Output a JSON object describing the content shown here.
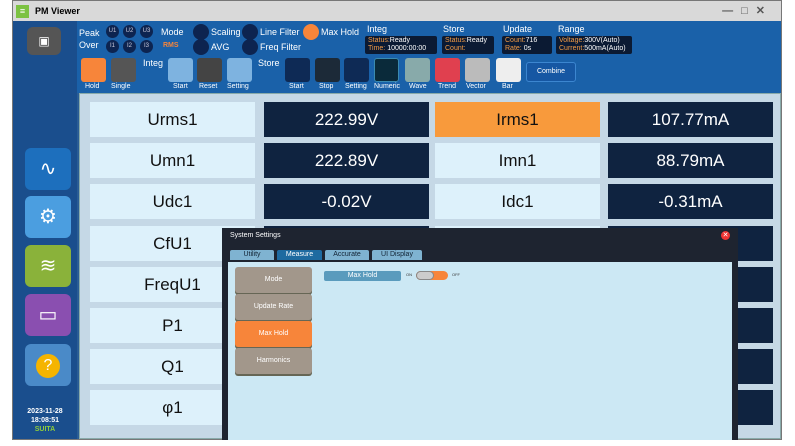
{
  "app": {
    "title": "PM Viewer"
  },
  "toolbar": {
    "peak": "Peak",
    "over": "Over",
    "u": [
      "U1",
      "U2",
      "U3"
    ],
    "i": [
      "I1",
      "I2",
      "I3"
    ],
    "mode": "Mode",
    "mode_value": "RMS",
    "scaling": "Scaling",
    "avg": "AVG",
    "line_filter": "Line Filter",
    "freq_filter": "Freq Filter",
    "max_hold": "Max Hold",
    "max_hold_on": true,
    "integ": {
      "title": "Integ",
      "status_label": "Status:",
      "status": "Ready",
      "time_label": "Time:",
      "time": "10000:00:00"
    },
    "store": {
      "title": "Store",
      "status_label": "Status:",
      "status": "Ready",
      "count_label": "Count:",
      "count": ""
    },
    "update": {
      "title": "Update",
      "count_label": "Count:",
      "count": "716",
      "rate_label": "Rate:",
      "rate": "0s"
    },
    "range": {
      "title": "Range",
      "voltage_label": "Voltage:",
      "voltage": "300V(Auto)",
      "current_label": "Current:",
      "current": "500mA(Auto)"
    },
    "buttons": {
      "hold": "Hold",
      "single": "Single",
      "integ_label": "Integ",
      "integ_start": "Start",
      "integ_reset": "Reset",
      "integ_setting": "Setting",
      "store_label": "Store",
      "store_start": "Start",
      "store_stop": "Stop",
      "store_setting": "Setting",
      "numeric": "Numeric",
      "wave": "Wave",
      "trend": "Trend",
      "vector": "Vector",
      "bar": "Bar",
      "combine": "Combine"
    }
  },
  "sidebar": {
    "date": "2023-11-28",
    "time": "18:08:51",
    "brand": "SUITA"
  },
  "measurements": [
    {
      "l1": "Urms1",
      "v1": "222.99V",
      "l2": "Irms1",
      "v2": "107.77mA"
    },
    {
      "l1": "Umn1",
      "v1": "222.89V",
      "l2": "Imn1",
      "v2": "88.79mA"
    },
    {
      "l1": "Udc1",
      "v1": "-0.02V",
      "l2": "Idc1",
      "v2": "-0.31mA"
    },
    {
      "l1": "CfU1",
      "v1": "",
      "l2": "",
      "v2": ""
    },
    {
      "l1": "FreqU1",
      "v1": "",
      "l2": "",
      "v2": ""
    },
    {
      "l1": "P1",
      "v1": "",
      "l2": "",
      "v2": ""
    },
    {
      "l1": "Q1",
      "v1": "",
      "l2": "",
      "v2": ""
    },
    {
      "l1": "φ1",
      "v1": "",
      "l2": "",
      "v2": ""
    }
  ],
  "dialog": {
    "title": "System Settings",
    "tabs": [
      "Utility",
      "Measure",
      "Accurate",
      "UI Display"
    ],
    "active_tab": "Measure",
    "menu": [
      "Mode",
      "Update Rate",
      "Max Hold",
      "Harmonics"
    ],
    "active_menu": "Max Hold",
    "setting_label": "Max Hold",
    "on": "ON",
    "off": "OFF",
    "toggle_state": "OFF"
  },
  "colors": {
    "accent": "#f7853a",
    "dark": "#0f2340",
    "blue": "#1a61a9"
  }
}
